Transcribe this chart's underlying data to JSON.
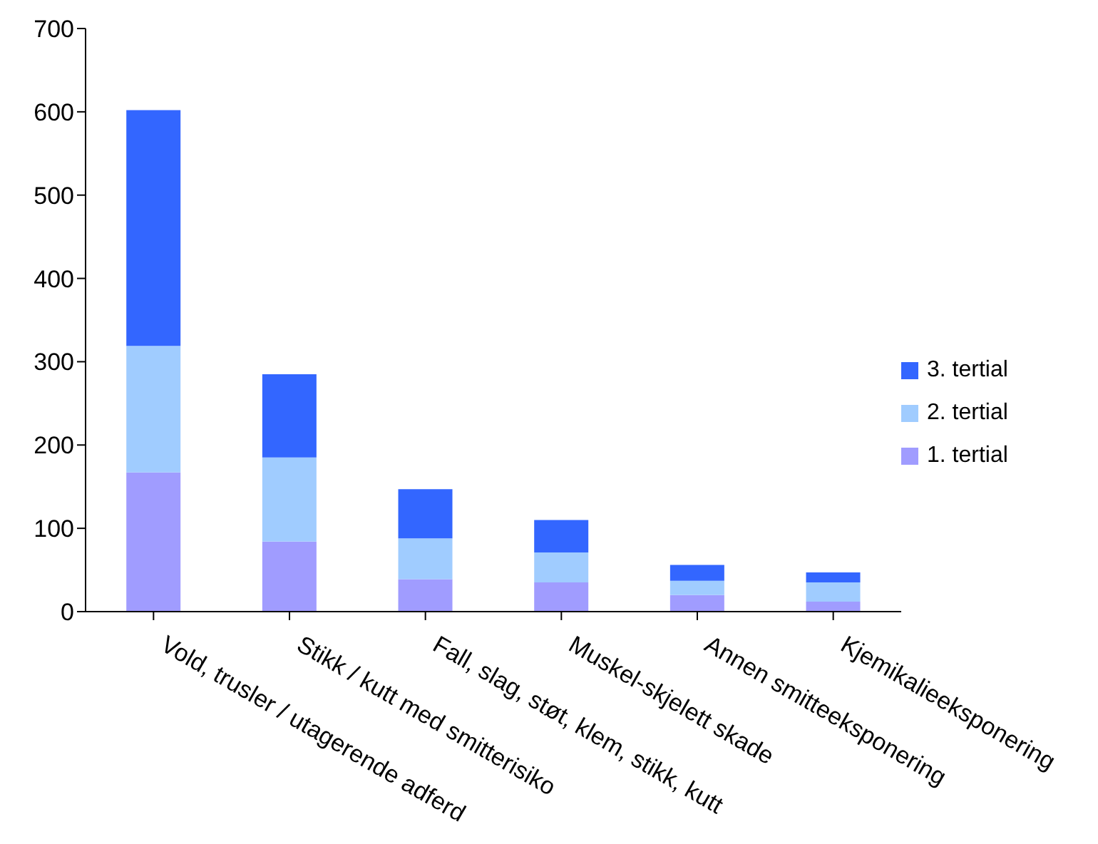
{
  "chart_data": {
    "type": "bar",
    "stacked": true,
    "categories": [
      "Vold, trusler / utagerende adferd",
      "Stikk / kutt med smitterisiko",
      "Fall, slag, støt, klem, stikk, kutt",
      "Muskel-skjelett skade",
      "Annen smitteeksponering",
      "Kjemikalieeksponering"
    ],
    "series": [
      {
        "name": "1. tertial",
        "color": "#a09cff",
        "values": [
          167,
          84,
          39,
          35,
          20,
          12
        ]
      },
      {
        "name": "2. tertial",
        "color": "#a0ccff",
        "values": [
          152,
          101,
          49,
          36,
          17,
          23
        ]
      },
      {
        "name": "3. tertial",
        "color": "#3366ff",
        "values": [
          283,
          100,
          59,
          39,
          19,
          12
        ]
      }
    ],
    "ylim": [
      0,
      700
    ],
    "yticks": [
      0,
      100,
      200,
      300,
      400,
      500,
      600,
      700
    ],
    "grid": false,
    "legend": "right"
  }
}
